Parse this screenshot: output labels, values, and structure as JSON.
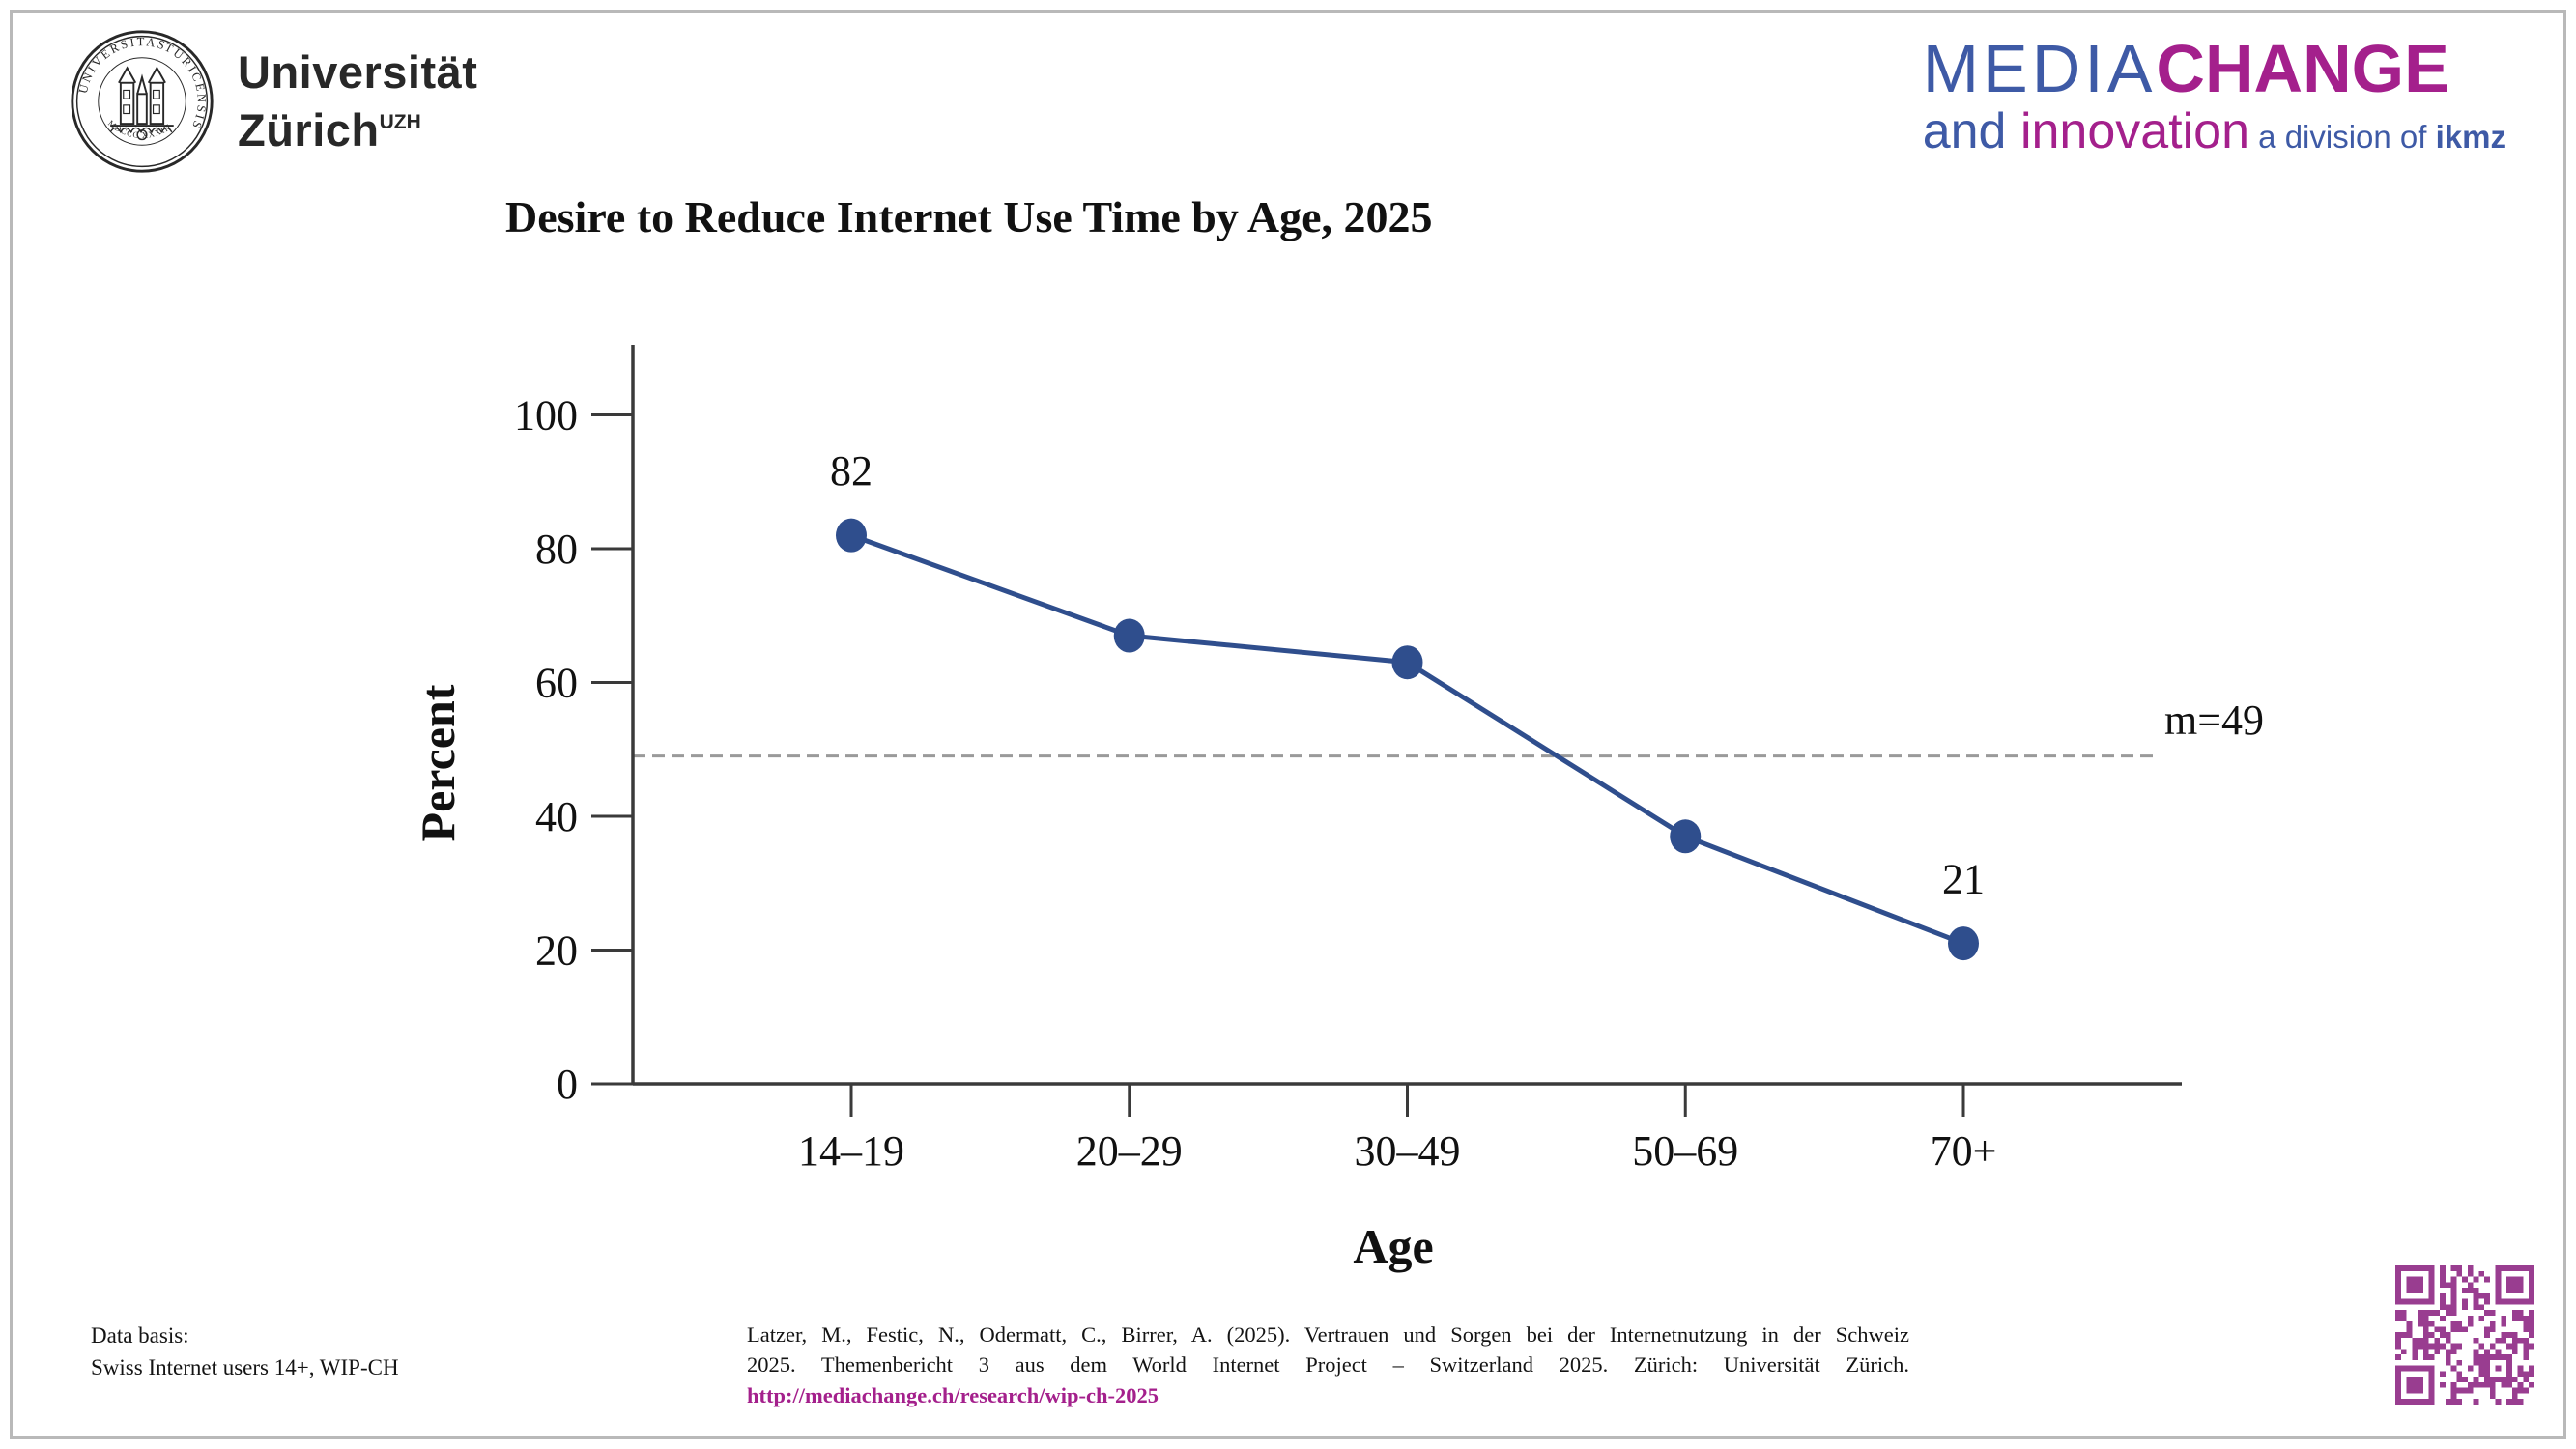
{
  "page": {
    "background": "#ffffff",
    "frame_color": "#b9b9b9"
  },
  "logos": {
    "uzh": {
      "wordmark_line1": "Universität",
      "wordmark_line2": "Zürich",
      "wordmark_sup": "UZH",
      "seal_text_left": "UNIVERSITAS",
      "seal_text_right": "TURICENSIS",
      "seal_text_bottom": "MDCCC XXXIII",
      "color": "#282828"
    },
    "mediachange": {
      "media": "MEDIA",
      "change": "CHANGE",
      "and": "and ",
      "innovation": "innovation",
      "division": " a division of ",
      "ikmz": "ikmz",
      "blue": "#3E5AA6",
      "magenta": "#A4208C"
    }
  },
  "chart_data": {
    "type": "line",
    "title": "Desire to Reduce Internet Use Time by Age, 2025",
    "categories": [
      "14–19",
      "20–29",
      "30–49",
      "50–69",
      "70+"
    ],
    "values": [
      82,
      67,
      63,
      37,
      21
    ],
    "point_labels": [
      "82",
      "",
      "",
      "",
      "21"
    ],
    "xlabel": "Age",
    "ylabel": "Percent",
    "ylim": [
      0,
      100
    ],
    "yticks": [
      0,
      20,
      40,
      60,
      80,
      100
    ],
    "mean_line": {
      "value": 49,
      "label": "m=49"
    },
    "line_color": "#2F4E8D",
    "marker_color": "#2F4E8D",
    "mean_dash_color": "#9a9a9a",
    "axis_color": "#3a3a3a",
    "text_color": "#111111",
    "grid": false,
    "legend": "none"
  },
  "footer": {
    "data_basis_line1": "Data basis:",
    "data_basis_line2": "Swiss Internet users 14+, WIP-CH",
    "citation_lines": [
      "Latzer, M., Festic, N., Odermatt, C., Birrer, A. (2025). Vertrauen und Sorgen bei der Internetnutzung in der Schweiz",
      "2025. Themenbericht 3 aus dem World Internet Project – Switzerland 2025. Zürich: Universität Zürich."
    ],
    "citation_link": "http://mediachange.ch/research/wip-ch-2025",
    "link_color": "#A4208C",
    "qr_color": "#993D90"
  }
}
